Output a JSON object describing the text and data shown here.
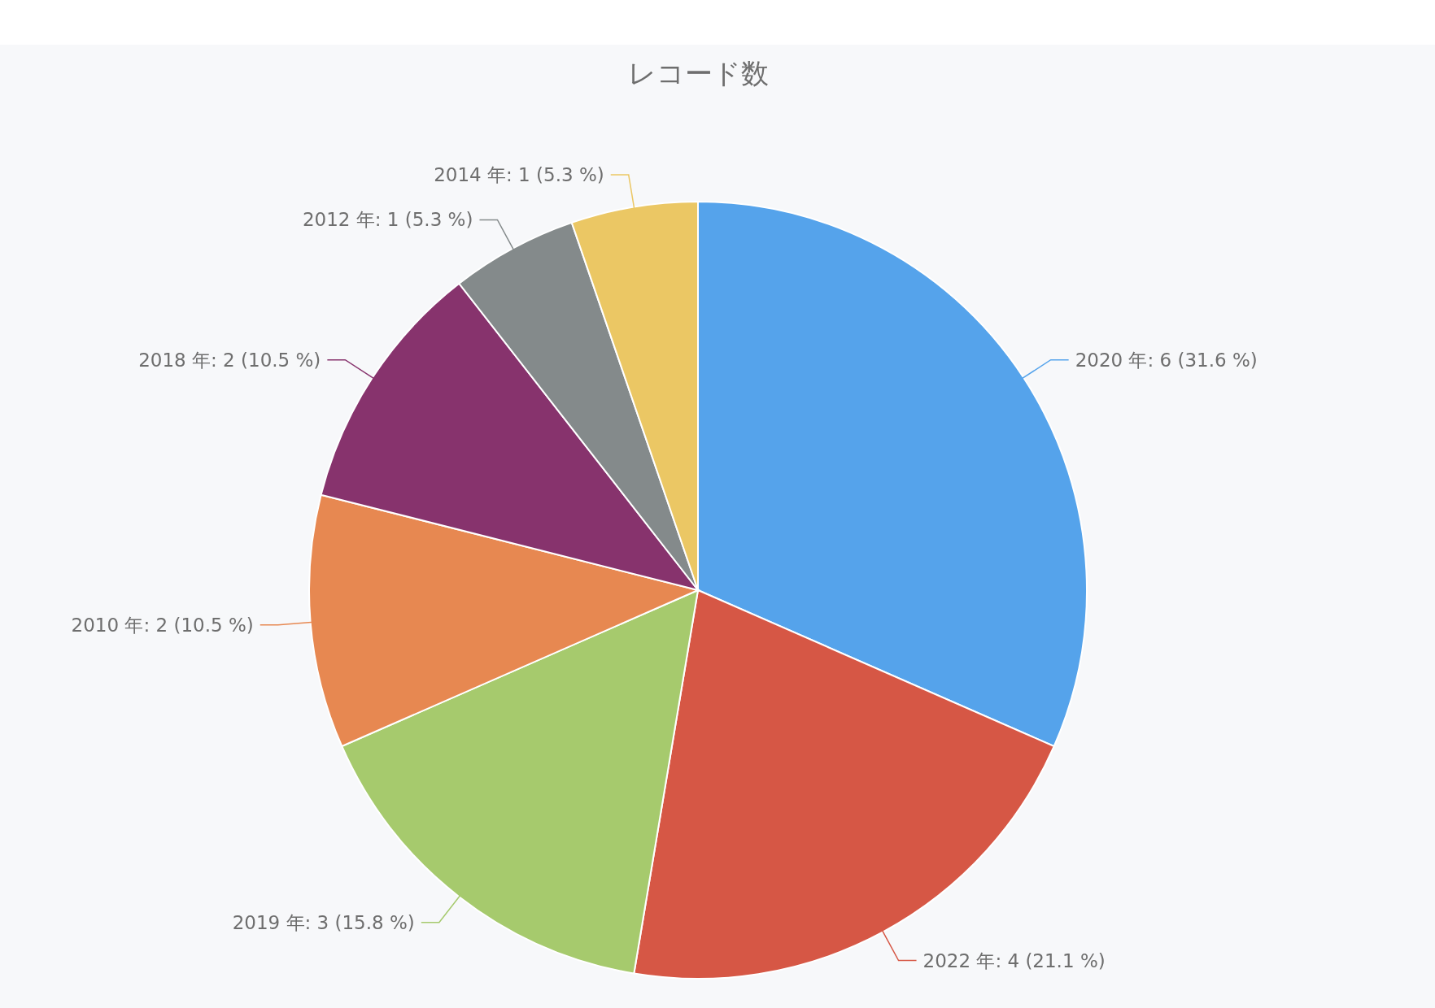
{
  "chart_data": {
    "type": "pie",
    "title": "レコード数",
    "categories": [
      "2020 年",
      "2022 年",
      "2019 年",
      "2010 年",
      "2018 年",
      "2012 年",
      "2014 年"
    ],
    "values": [
      6,
      4,
      3,
      2,
      2,
      1,
      1
    ],
    "value_labels": [
      "6 (31.6 %)",
      "4 (21.1 %)",
      "3 (15.8 %)",
      "2 (10.5 %)",
      "2 (10.5 %)",
      "1 (5.3 %)",
      "1 (5.3 %)"
    ],
    "colors": [
      "#55a3eb",
      "#d65745",
      "#a6ca6d",
      "#e78851",
      "#87336d",
      "#848a8b",
      "#ebc764"
    ]
  }
}
